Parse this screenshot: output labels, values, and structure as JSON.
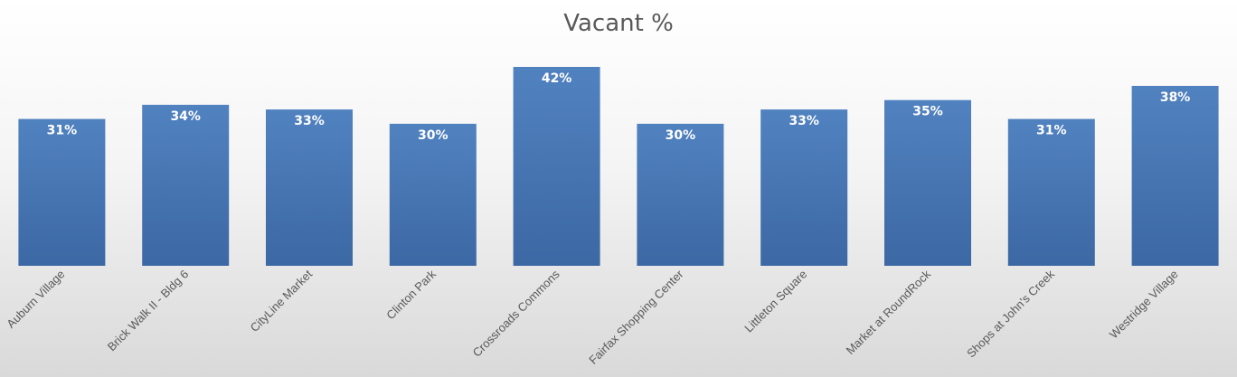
{
  "chart_data": {
    "type": "bar",
    "title": "Vacant %",
    "categories": [
      "Auburn Village",
      "Brick Walk II - Bldg 6",
      "CityLine Market",
      "Clinton Park",
      "Crossroads Commons",
      "Fairfax Shopping Center",
      "Littleton Square",
      "Market at RoundRock",
      "Shops at John's Creek",
      "Westridge Village"
    ],
    "values": [
      31,
      34,
      33,
      30,
      42,
      30,
      33,
      35,
      31,
      38
    ],
    "data_labels": [
      "31%",
      "34%",
      "33%",
      "30%",
      "42%",
      "30%",
      "33%",
      "35%",
      "31%",
      "38%"
    ],
    "ylim": [
      0,
      50
    ],
    "grid": false,
    "legend": "none",
    "bar_color_top": "#5182c0",
    "bar_color_bottom": "#3c68a4"
  }
}
